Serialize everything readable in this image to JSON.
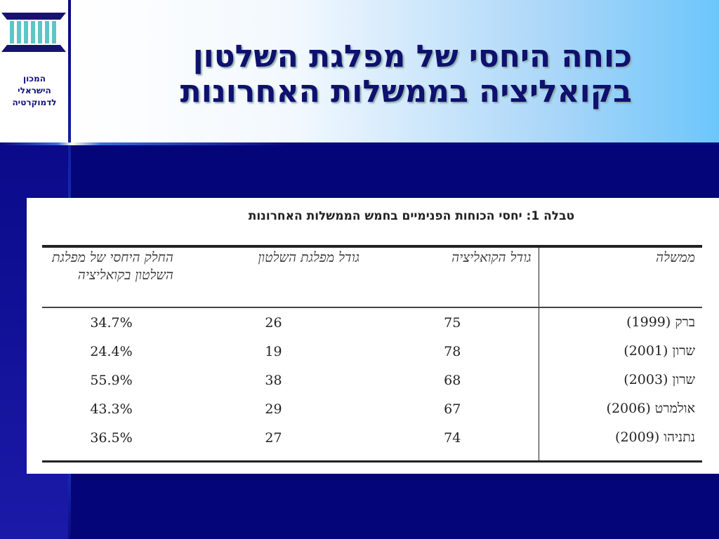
{
  "institute": {
    "name_lines": [
      "המכון",
      "הישראלי",
      "לדמוקרטיה"
    ]
  },
  "slide": {
    "title_line1": "כוחה היחסי של מפלגת השלטון",
    "title_line2": "בקואליציה בממשלות האחרונות"
  },
  "table": {
    "caption": "טבלה 1: יחסי הכוחות הפנימיים בחמש הממשלות האחרונות",
    "headers": [
      "ממשלה",
      "גודל הקואליציה",
      "גודל מפלגת השלטון",
      "החלק היחסי של מפלגת השלטון בקואליציה"
    ],
    "rows": [
      [
        "ברק (1999)",
        "75",
        "26",
        "34.7%"
      ],
      [
        "שרון (2001)",
        "78",
        "19",
        "24.4%"
      ],
      [
        "שרון (2003)",
        "68",
        "38",
        "55.9%"
      ],
      [
        "אולמרט (2006)",
        "67",
        "29",
        "43.3%"
      ],
      [
        "נתניהו (2009)",
        "74",
        "27",
        "36.5%"
      ]
    ]
  }
}
